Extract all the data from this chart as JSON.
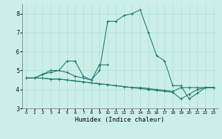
{
  "bg_color": "#cceee8",
  "line_color": "#1a7a6a",
  "grid_color": "#aadddd",
  "xlabel": "Humidex (Indice chaleur)",
  "xlim": [
    -0.5,
    23.5
  ],
  "ylim": [
    3,
    8.5
  ],
  "yticks": [
    3,
    4,
    5,
    6,
    7,
    8
  ],
  "xticks": [
    0,
    1,
    2,
    3,
    4,
    5,
    6,
    7,
    8,
    9,
    10,
    11,
    12,
    13,
    14,
    15,
    16,
    17,
    18,
    19,
    20,
    21,
    22,
    23
  ],
  "series": [
    [
      4.6,
      4.6,
      4.8,
      5.0,
      5.0,
      5.5,
      5.5,
      4.7,
      4.5,
      5.0,
      7.6,
      7.6,
      7.9,
      8.0,
      8.2,
      7.0,
      5.8,
      5.5,
      4.2,
      4.2,
      3.5,
      3.8,
      4.1,
      4.1
    ],
    [
      4.6,
      4.6,
      4.8,
      4.9,
      5.0,
      4.9,
      4.7,
      4.6,
      4.5,
      5.3,
      5.3,
      null,
      null,
      null,
      null,
      null,
      null,
      null,
      null,
      null,
      null,
      null,
      null,
      null
    ],
    [
      4.6,
      4.6,
      4.6,
      4.55,
      4.55,
      4.5,
      4.45,
      4.4,
      4.35,
      4.3,
      4.25,
      4.2,
      4.15,
      4.1,
      4.1,
      4.05,
      4.0,
      3.95,
      3.9,
      4.1,
      4.1,
      4.1,
      4.1,
      4.1
    ],
    [
      4.6,
      4.6,
      4.6,
      4.55,
      4.55,
      4.5,
      4.45,
      4.4,
      4.35,
      4.3,
      4.25,
      4.2,
      4.15,
      4.1,
      4.05,
      4.0,
      3.95,
      3.9,
      3.85,
      3.5,
      3.75,
      4.0,
      4.1,
      4.1
    ]
  ]
}
